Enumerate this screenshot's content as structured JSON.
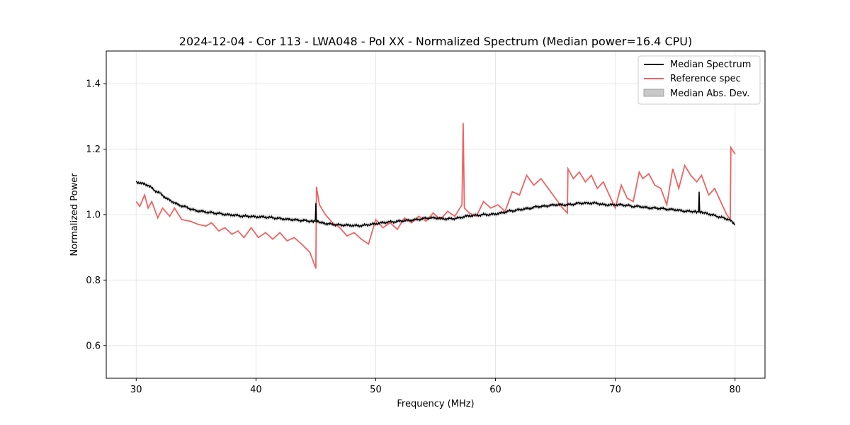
{
  "chart_data": {
    "type": "line",
    "title": "2024-12-04 - Cor 113 - LWA048 - Pol XX - Normalized Spectrum (Median power=16.4 CPU)",
    "xlabel": "Frequency (MHz)",
    "ylabel": "Normalized Power",
    "xlim": [
      27.5,
      82.5
    ],
    "ylim": [
      0.5,
      1.5
    ],
    "xticks": [
      30,
      40,
      50,
      60,
      70,
      80
    ],
    "yticks": [
      0.6,
      0.8,
      1.0,
      1.2,
      1.4
    ],
    "xtick_labels": [
      "30",
      "40",
      "50",
      "60",
      "70",
      "80"
    ],
    "ytick_labels": [
      "0.6",
      "0.8",
      "1.0",
      "1.2",
      "1.4"
    ],
    "grid": true,
    "legend_position": "top-right",
    "colors": {
      "median": "#000000",
      "reference": "#f06262",
      "mad_fill": "#c8c8c8",
      "mad_edge": "#a0a0a0",
      "grid": "#e6e6e6"
    },
    "series": [
      {
        "name": "Median Spectrum",
        "x": [
          30.0,
          30.5,
          31.0,
          31.5,
          32.0,
          32.5,
          33.0,
          33.5,
          34.0,
          34.5,
          35.0,
          35.5,
          36.0,
          36.5,
          37.0,
          37.5,
          38.0,
          38.5,
          39.0,
          39.5,
          40.0,
          40.5,
          41.0,
          41.5,
          42.0,
          42.5,
          43.0,
          43.5,
          44.0,
          44.5,
          44.95,
          45.0,
          45.05,
          45.5,
          46.0,
          46.5,
          47.0,
          47.5,
          48.0,
          48.5,
          49.0,
          49.5,
          50.0,
          50.5,
          51.0,
          51.5,
          52.0,
          52.5,
          53.0,
          53.5,
          54.0,
          54.5,
          55.0,
          55.5,
          56.0,
          56.5,
          57.0,
          57.5,
          58.0,
          58.5,
          59.0,
          59.5,
          60.0,
          60.5,
          61.0,
          61.5,
          62.0,
          62.5,
          63.0,
          63.5,
          64.0,
          64.5,
          65.0,
          65.5,
          66.0,
          66.5,
          67.0,
          67.5,
          68.0,
          68.5,
          69.0,
          69.5,
          70.0,
          70.5,
          71.0,
          71.5,
          72.0,
          72.5,
          73.0,
          73.5,
          74.0,
          74.5,
          75.0,
          75.5,
          76.0,
          76.5,
          76.95,
          77.0,
          77.05,
          77.5,
          78.0,
          78.5,
          79.0,
          79.5,
          80.0
        ],
        "values": [
          1.1,
          1.095,
          1.09,
          1.075,
          1.065,
          1.05,
          1.04,
          1.03,
          1.025,
          1.018,
          1.012,
          1.01,
          1.007,
          1.005,
          1.003,
          1.0,
          0.999,
          0.997,
          0.995,
          0.995,
          0.993,
          0.993,
          0.992,
          0.99,
          0.988,
          0.986,
          0.985,
          0.983,
          0.982,
          0.98,
          0.98,
          1.035,
          0.98,
          0.975,
          0.972,
          0.97,
          0.968,
          0.968,
          0.967,
          0.966,
          0.967,
          0.97,
          0.972,
          0.975,
          0.977,
          0.978,
          0.98,
          0.982,
          0.983,
          0.985,
          0.988,
          0.99,
          0.99,
          0.988,
          0.987,
          0.988,
          0.99,
          0.995,
          0.997,
          0.998,
          1.0,
          1.0,
          1.002,
          1.005,
          1.01,
          1.012,
          1.015,
          1.018,
          1.02,
          1.025,
          1.025,
          1.028,
          1.03,
          1.03,
          1.03,
          1.032,
          1.035,
          1.035,
          1.035,
          1.035,
          1.03,
          1.03,
          1.03,
          1.03,
          1.028,
          1.025,
          1.025,
          1.022,
          1.02,
          1.02,
          1.018,
          1.016,
          1.015,
          1.012,
          1.01,
          1.01,
          1.008,
          1.07,
          1.008,
          1.005,
          1.0,
          0.995,
          0.99,
          0.985,
          0.97
        ]
      },
      {
        "name": "Reference spec",
        "x": [
          30.0,
          30.3,
          30.7,
          31.0,
          31.3,
          31.8,
          32.2,
          32.8,
          33.2,
          33.8,
          34.5,
          35.2,
          35.8,
          36.3,
          36.9,
          37.4,
          38.0,
          38.5,
          39.0,
          39.6,
          40.2,
          40.8,
          41.4,
          42.0,
          42.6,
          43.2,
          43.8,
          44.5,
          45.0,
          45.05,
          45.3,
          45.8,
          46.4,
          47.0,
          47.6,
          48.2,
          48.8,
          49.4,
          50.0,
          50.6,
          51.2,
          51.8,
          52.4,
          53.0,
          53.6,
          54.2,
          54.8,
          55.4,
          56.0,
          56.6,
          57.2,
          57.3,
          57.4,
          57.8,
          58.4,
          59.0,
          59.6,
          60.2,
          60.8,
          61.4,
          62.0,
          62.6,
          63.2,
          63.8,
          64.4,
          65.0,
          65.6,
          66.0,
          66.05,
          66.5,
          67.0,
          67.5,
          68.0,
          68.5,
          69.0,
          69.5,
          70.0,
          70.5,
          71.0,
          71.5,
          72.0,
          72.3,
          72.8,
          73.3,
          73.8,
          74.3,
          74.8,
          75.3,
          75.8,
          76.3,
          76.8,
          77.2,
          77.8,
          78.3,
          78.8,
          79.3,
          79.6,
          79.65,
          80.0
        ],
        "values": [
          1.04,
          1.025,
          1.06,
          1.02,
          1.04,
          0.99,
          1.02,
          0.995,
          1.02,
          0.985,
          0.98,
          0.97,
          0.965,
          0.975,
          0.95,
          0.96,
          0.94,
          0.95,
          0.93,
          0.96,
          0.93,
          0.945,
          0.925,
          0.945,
          0.92,
          0.93,
          0.91,
          0.885,
          0.835,
          1.085,
          1.03,
          1.0,
          0.975,
          0.96,
          0.935,
          0.945,
          0.925,
          0.91,
          0.985,
          0.96,
          0.975,
          0.955,
          0.99,
          0.975,
          0.995,
          0.98,
          1.005,
          0.985,
          1.01,
          0.995,
          1.03,
          1.28,
          1.02,
          1.005,
          0.995,
          1.04,
          1.02,
          1.03,
          1.01,
          1.07,
          1.06,
          1.12,
          1.09,
          1.11,
          1.08,
          1.05,
          1.02,
          1.005,
          1.14,
          1.11,
          1.13,
          1.1,
          1.12,
          1.08,
          1.1,
          1.06,
          1.02,
          1.09,
          1.05,
          1.04,
          1.13,
          1.11,
          1.125,
          1.09,
          1.08,
          1.03,
          1.14,
          1.08,
          1.15,
          1.12,
          1.1,
          1.12,
          1.06,
          1.08,
          1.04,
          1.0,
          0.985,
          1.205,
          1.185
        ]
      }
    ],
    "mad_band": {
      "name": "Median Abs. Dev.",
      "half_width": 0.006
    }
  }
}
